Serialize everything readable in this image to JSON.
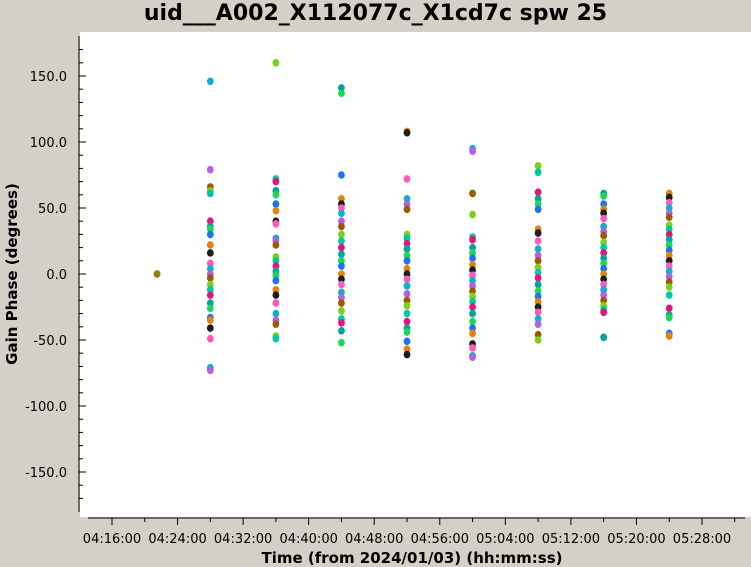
{
  "window": {
    "title": "uid___A002_X112077c_X1cd7c spw 25"
  },
  "colors": {
    "background": "#d4d0c8",
    "plot_background": "#ffffff",
    "palette": [
      "#e6820e",
      "#9c5a00",
      "#1fd65b",
      "#10b0c8",
      "#e0177a",
      "#1d1d1d",
      "#7ad01e",
      "#1e74f0",
      "#b45fe4",
      "#0aa0a0",
      "#ff5ab8",
      "#00c8a0"
    ]
  },
  "chart_data": {
    "type": "scatter",
    "title": "uid___A002_X112077c_X1cd7c spw 25",
    "xlabel": "Time (from 2024/01/03) (hh:mm:ss)",
    "ylabel": "Gain Phase (degrees)",
    "xlim": [
      "04:12:30",
      "05:33:00"
    ],
    "ylim": [
      -180,
      180
    ],
    "x_ticks": [
      "04:16:00",
      "04:24:00",
      "04:32:00",
      "04:40:00",
      "04:48:00",
      "04:56:00",
      "05:04:00",
      "05:12:00",
      "05:20:00",
      "05:28:00"
    ],
    "y_ticks": [
      "150.0",
      "100.0",
      "50.0",
      "0.0",
      "-50.0",
      "-100.0",
      "-150.0"
    ],
    "y_tick_values": [
      150,
      100,
      50,
      0,
      -50,
      -100,
      -150
    ],
    "grid": false,
    "legend": "none",
    "series": [
      {
        "x": "04:21:30",
        "values": [
          0,
          0
        ]
      },
      {
        "x": "04:28:00",
        "values": [
          146,
          79,
          66,
          63,
          61,
          40,
          36,
          34,
          30,
          22,
          16,
          8,
          4,
          0,
          -3,
          -8,
          -12,
          -16,
          -22,
          -26,
          -33,
          -35,
          -41,
          -49,
          -71,
          -73
        ]
      },
      {
        "x": "04:36:00",
        "values": [
          160,
          72,
          70,
          63,
          60,
          53,
          48,
          40,
          38,
          27,
          25,
          22,
          13,
          10,
          6,
          2,
          -1,
          -5,
          -12,
          -16,
          -22,
          -30,
          -35,
          -38,
          -47,
          -49
        ]
      },
      {
        "x": "04:44:00",
        "values": [
          141,
          137,
          75,
          57,
          53,
          50,
          46,
          40,
          36,
          30,
          25,
          20,
          15,
          10,
          6,
          0,
          -4,
          -8,
          -14,
          -18,
          -22,
          -28,
          -34,
          -37,
          -43,
          -52
        ]
      },
      {
        "x": "04:52:00",
        "values": [
          108,
          107,
          72,
          57,
          53,
          49,
          30,
          27,
          23,
          19,
          14,
          10,
          4,
          0,
          -4,
          -9,
          -15,
          -20,
          -24,
          -30,
          -36,
          -41,
          -44,
          -51,
          -57,
          -61
        ]
      },
      {
        "x": "05:00:00",
        "values": [
          95,
          93,
          61,
          45,
          28,
          26,
          20,
          16,
          12,
          7,
          3,
          -1,
          -5,
          -9,
          -13,
          -17,
          -21,
          -25,
          -30,
          -36,
          -41,
          -45,
          -53,
          -56,
          -62,
          -63
        ]
      },
      {
        "x": "05:08:00",
        "values": [
          82,
          77,
          62,
          57,
          53,
          49,
          34,
          31,
          25,
          19,
          14,
          10,
          5,
          1,
          -3,
          -8,
          -13,
          -17,
          -21,
          -25,
          -29,
          -34,
          -38,
          -46,
          -50
        ]
      },
      {
        "x": "05:16:00",
        "values": [
          61,
          59,
          53,
          49,
          46,
          42,
          36,
          32,
          29,
          24,
          20,
          16,
          12,
          8,
          4,
          0,
          -4,
          -8,
          -12,
          -16,
          -20,
          -24,
          -27,
          -29,
          -48
        ]
      },
      {
        "x": "05:24:00",
        "values": [
          61,
          58,
          54,
          50,
          46,
          43,
          37,
          34,
          30,
          26,
          22,
          18,
          14,
          10,
          6,
          2,
          -2,
          -6,
          -10,
          -16,
          -26,
          -31,
          -33,
          -45,
          -47
        ]
      }
    ]
  }
}
